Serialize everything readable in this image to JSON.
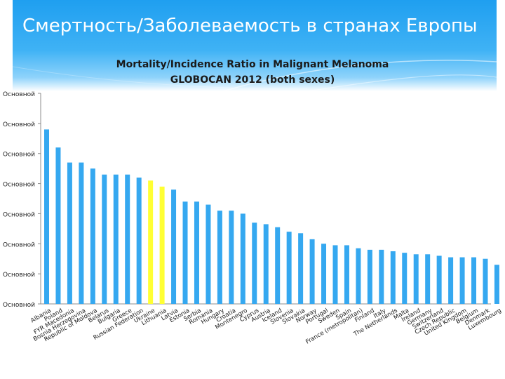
{
  "slide": {
    "title": "Смертность/Заболеваемость в странах Европы"
  },
  "colors": {
    "bar": "#35a8f0",
    "highlight": "#ffff33",
    "axis": "#8c8c8c",
    "header": "#1f9ff0"
  },
  "chart_data": {
    "type": "bar",
    "title": "Mortality/Incidence Ratio in Malignant Melanoma",
    "subtitle": "GLOBOCAN 2012 (both sexes)",
    "y_tick_labels": [
      "Основной",
      "Основной",
      "Основной",
      "Основной",
      "Основной",
      "Основной",
      "Основной",
      "Основной"
    ],
    "ylim": [
      0,
      0.7
    ],
    "grid": false,
    "legend": "none",
    "categories": [
      "Albania",
      "Poland",
      "FYR Macedonia",
      "Bosnia Herzegovina",
      "Republic of Moldova",
      "Belarus",
      "Bulgaria",
      "Greece",
      "Russian Federation",
      "Ukraine",
      "Lithuania",
      "Latvia",
      "Estonia",
      "Serbia",
      "Romania",
      "Hungary",
      "Croatia",
      "Montenegro",
      "Cyprus",
      "Austria",
      "Iceland",
      "Slovenia",
      "Slovakia",
      "Norway",
      "Portugal",
      "Sweden",
      "Spain",
      "France (metropolitan)",
      "Finland",
      "Italy",
      "The Netherlands",
      "Malta",
      "Ireland",
      "Germany",
      "Switzerland",
      "Czech Republic",
      "United Kingdom",
      "Belgium",
      "Denmark",
      "Luxembourg"
    ],
    "values": [
      0.58,
      0.52,
      0.47,
      0.47,
      0.45,
      0.43,
      0.43,
      0.43,
      0.42,
      0.41,
      0.39,
      0.38,
      0.34,
      0.34,
      0.33,
      0.31,
      0.31,
      0.3,
      0.27,
      0.265,
      0.255,
      0.24,
      0.235,
      0.215,
      0.2,
      0.195,
      0.195,
      0.185,
      0.18,
      0.18,
      0.175,
      0.17,
      0.165,
      0.165,
      0.16,
      0.155,
      0.155,
      0.155,
      0.15,
      0.13
    ],
    "highlight": [
      "Ukraine",
      "Lithuania"
    ]
  }
}
